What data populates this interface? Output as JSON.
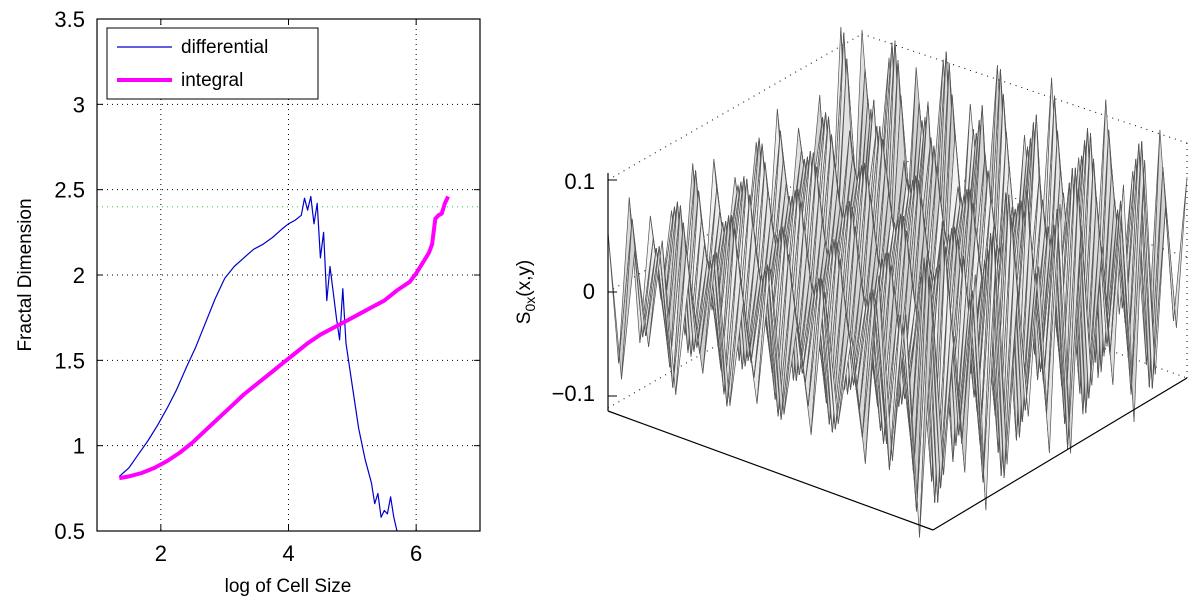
{
  "chart_data": [
    {
      "type": "line",
      "xlabel": "log of Cell Size",
      "ylabel": "Fractal Dimension",
      "xlim": [
        1,
        7
      ],
      "ylim": [
        0.5,
        3.5
      ],
      "xticks": [
        2,
        4,
        6
      ],
      "yticks": [
        0.5,
        1,
        1.5,
        2,
        2.5,
        3,
        3.5
      ],
      "grid": true,
      "legend_position": "top-left",
      "reference_line": {
        "y": 2.4,
        "color": "#66cc66",
        "style": "dotted"
      },
      "series": [
        {
          "name": "differential",
          "color": "#0000cc",
          "x": [
            1.35,
            1.5,
            1.65,
            1.8,
            1.95,
            2.1,
            2.25,
            2.4,
            2.55,
            2.7,
            2.85,
            3.0,
            3.15,
            3.3,
            3.45,
            3.6,
            3.75,
            3.9,
            4.0,
            4.1,
            4.2,
            4.25,
            4.3,
            4.35,
            4.4,
            4.45,
            4.5,
            4.55,
            4.6,
            4.65,
            4.7,
            4.75,
            4.8,
            4.85,
            4.9,
            5.0,
            5.1,
            5.2,
            5.3,
            5.35,
            5.4,
            5.45,
            5.5,
            5.55,
            5.6,
            5.65,
            5.7
          ],
          "y": [
            0.82,
            0.87,
            0.95,
            1.03,
            1.12,
            1.22,
            1.33,
            1.46,
            1.58,
            1.72,
            1.86,
            1.98,
            2.05,
            2.1,
            2.15,
            2.18,
            2.22,
            2.27,
            2.3,
            2.32,
            2.35,
            2.45,
            2.38,
            2.46,
            2.3,
            2.42,
            2.1,
            2.25,
            1.85,
            2.05,
            1.9,
            1.75,
            1.62,
            1.92,
            1.6,
            1.35,
            1.1,
            0.92,
            0.78,
            0.66,
            0.72,
            0.58,
            0.62,
            0.6,
            0.7,
            0.58,
            0.5
          ]
        },
        {
          "name": "integral",
          "color": "#ff00ff",
          "x": [
            1.35,
            1.5,
            1.7,
            1.9,
            2.1,
            2.3,
            2.5,
            2.7,
            2.9,
            3.1,
            3.3,
            3.5,
            3.7,
            3.9,
            4.1,
            4.3,
            4.5,
            4.7,
            4.9,
            5.1,
            5.3,
            5.5,
            5.7,
            5.9,
            6.0,
            6.1,
            6.2,
            6.25,
            6.3,
            6.35,
            6.4,
            6.45,
            6.5
          ],
          "y": [
            0.81,
            0.82,
            0.84,
            0.87,
            0.91,
            0.96,
            1.02,
            1.09,
            1.16,
            1.23,
            1.3,
            1.36,
            1.42,
            1.48,
            1.54,
            1.6,
            1.65,
            1.69,
            1.73,
            1.77,
            1.81,
            1.85,
            1.91,
            1.96,
            2.01,
            2.07,
            2.13,
            2.18,
            2.33,
            2.35,
            2.36,
            2.42,
            2.46
          ]
        }
      ]
    },
    {
      "type": "surface",
      "zlabel": "S0x(x,y)",
      "zlabel_main": "S",
      "zlabel_sub": "0x",
      "zlabel_rest": "(x,y)",
      "zticks": [
        "0.1",
        "0",
        "−0.1"
      ],
      "z_values": [
        0.1,
        0,
        -0.1
      ],
      "color": "grayscale"
    }
  ]
}
